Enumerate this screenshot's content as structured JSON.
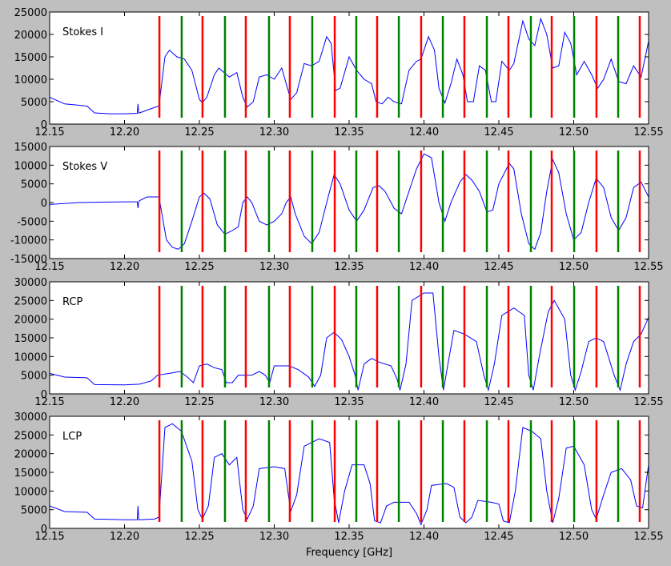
{
  "chart_data": [
    {
      "type": "line",
      "title": "Stokes I",
      "xlim": [
        12.15,
        12.55
      ],
      "xticks": [
        12.15,
        {
          "value": 12.2,
          "label": "12.20"
        },
        12.25,
        {
          "value": 12.3,
          "label": "12.30"
        },
        12.35,
        {
          "value": 12.4,
          "label": "12.40"
        },
        12.45,
        {
          "value": 12.5,
          "label": "12.50"
        },
        12.55
      ],
      "ylim": [
        0,
        25000
      ],
      "yticks": [
        0,
        5000,
        10000,
        15000,
        20000,
        25000
      ],
      "markers": [
        {
          "color": "#ff0000",
          "x": [
            12.2233,
            12.2521,
            12.281,
            12.3104,
            12.3404,
            12.3687,
            12.3981,
            12.427,
            12.4564,
            12.4853,
            12.5152,
            12.5441
          ]
        },
        {
          "color": "#008000",
          "x": [
            12.2382,
            12.2671,
            12.2965,
            12.3254,
            12.3548,
            12.3832,
            12.4126,
            12.442,
            12.4714,
            12.5003,
            12.5297
          ]
        }
      ],
      "series": [
        {
          "color": "#0000ff",
          "x": [
            12.15,
            12.16,
            12.17,
            12.175,
            12.18,
            12.19,
            12.2,
            12.2085,
            12.209,
            12.2095,
            12.21,
            12.22,
            12.223,
            12.227,
            12.23,
            12.235,
            12.24,
            12.245,
            12.25,
            12.252,
            12.255,
            12.26,
            12.263,
            12.27,
            12.275,
            12.279,
            12.282,
            12.286,
            12.29,
            12.295,
            12.3,
            12.305,
            12.308,
            12.311,
            12.315,
            12.32,
            12.325,
            12.33,
            12.335,
            12.338,
            12.341,
            12.344,
            12.35,
            12.355,
            12.36,
            12.365,
            12.368,
            12.372,
            12.376,
            12.38,
            12.385,
            12.39,
            12.395,
            12.398,
            12.403,
            12.407,
            12.41,
            12.414,
            12.418,
            12.422,
            12.426,
            12.429,
            12.433,
            12.437,
            12.441,
            12.445,
            12.448,
            12.452,
            12.457,
            12.46,
            12.466,
            12.47,
            12.474,
            12.478,
            12.482,
            12.486,
            12.49,
            12.494,
            12.498,
            12.502,
            12.507,
            12.512,
            12.516,
            12.52,
            12.525,
            12.53,
            12.535,
            12.54,
            12.545,
            12.55
          ],
          "values": [
            6000,
            4500,
            4200,
            4000,
            2500,
            2300,
            2300,
            2400,
            4500,
            2400,
            2500,
            3700,
            4000,
            15000,
            16500,
            15000,
            14500,
            12000,
            5500,
            4800,
            6000,
            11000,
            12500,
            10500,
            11500,
            6000,
            3800,
            5000,
            10500,
            11000,
            10000,
            12500,
            9000,
            5500,
            7000,
            13500,
            13000,
            14000,
            19500,
            18000,
            7500,
            8000,
            15000,
            12000,
            10000,
            9000,
            5000,
            4500,
            6000,
            5000,
            4500,
            12000,
            14000,
            14500,
            19500,
            16500,
            8000,
            4700,
            9000,
            14500,
            11000,
            5000,
            5000,
            13000,
            12000,
            5000,
            5000,
            14000,
            12000,
            13500,
            23000,
            19000,
            17500,
            23500,
            20000,
            12500,
            13000,
            20500,
            18000,
            11000,
            14000,
            11000,
            8000,
            10000,
            14500,
            9500,
            9000,
            13000,
            10500,
            18500
          ]
        }
      ]
    },
    {
      "type": "line",
      "title": "Stokes V",
      "xlim": [
        12.15,
        12.55
      ],
      "xticks": [
        12.15,
        {
          "value": 12.2,
          "label": "12.20"
        },
        12.25,
        {
          "value": 12.3,
          "label": "12.30"
        },
        12.35,
        {
          "value": 12.4,
          "label": "12.40"
        },
        12.45,
        {
          "value": 12.5,
          "label": "12.50"
        },
        12.55
      ],
      "ylim": [
        -15000,
        15000
      ],
      "yticks": [
        -15000,
        -10000,
        -5000,
        0,
        5000,
        10000,
        15000
      ],
      "markers": [
        {
          "color": "#ff0000",
          "x": [
            12.2233,
            12.2521,
            12.281,
            12.3104,
            12.3404,
            12.3687,
            12.3981,
            12.427,
            12.4564,
            12.4853,
            12.5152,
            12.5441
          ]
        },
        {
          "color": "#008000",
          "x": [
            12.2382,
            12.2671,
            12.2965,
            12.3254,
            12.3548,
            12.3832,
            12.4126,
            12.442,
            12.4714,
            12.5003,
            12.5297
          ]
        }
      ],
      "series": [
        {
          "color": "#0000ff",
          "x": [
            12.15,
            12.17,
            12.2,
            12.2085,
            12.209,
            12.2095,
            12.21,
            12.215,
            12.223,
            12.228,
            12.232,
            12.236,
            12.24,
            12.245,
            12.25,
            12.253,
            12.257,
            12.262,
            12.267,
            12.272,
            12.276,
            12.279,
            12.282,
            12.285,
            12.29,
            12.295,
            12.3,
            12.305,
            12.308,
            12.311,
            12.314,
            12.32,
            12.325,
            12.33,
            12.335,
            12.34,
            12.344,
            12.35,
            12.355,
            12.36,
            12.366,
            12.37,
            12.374,
            12.38,
            12.385,
            12.39,
            12.395,
            12.4,
            12.405,
            12.41,
            12.414,
            12.418,
            12.424,
            12.428,
            12.432,
            12.437,
            12.442,
            12.446,
            12.45,
            12.457,
            12.46,
            12.465,
            12.47,
            12.474,
            12.478,
            12.482,
            12.486,
            12.49,
            12.495,
            12.5,
            12.505,
            12.51,
            12.515,
            12.52,
            12.525,
            12.53,
            12.535,
            12.54,
            12.545,
            12.55
          ],
          "values": [
            -500,
            0,
            200,
            200,
            -1500,
            200,
            500,
            1500,
            1500,
            -10000,
            -12000,
            -12500,
            -11000,
            -5000,
            1500,
            2500,
            1000,
            -6000,
            -8500,
            -7500,
            -6500,
            0,
            1500,
            0,
            -5000,
            -6000,
            -5000,
            -3000,
            0,
            1500,
            -3000,
            -9000,
            -11000,
            -8000,
            0,
            7500,
            5000,
            -2000,
            -5000,
            -2000,
            4000,
            4500,
            3000,
            -1500,
            -3000,
            3000,
            9000,
            13000,
            12000,
            0,
            -5000,
            0,
            5500,
            7500,
            6000,
            3000,
            -2500,
            -2000,
            5000,
            10500,
            9000,
            -3000,
            -11000,
            -12500,
            -8000,
            3000,
            11500,
            8000,
            -3000,
            -10000,
            -8000,
            0,
            6500,
            4000,
            -4000,
            -7500,
            -4000,
            4000,
            5500,
            1500
          ]
        }
      ]
    },
    {
      "type": "line",
      "title": "RCP",
      "xlim": [
        12.15,
        12.55
      ],
      "xticks": [
        12.15,
        {
          "value": 12.2,
          "label": "12.20"
        },
        12.25,
        {
          "value": 12.3,
          "label": "12.30"
        },
        12.35,
        {
          "value": 12.4,
          "label": "12.40"
        },
        12.45,
        {
          "value": 12.5,
          "label": "12.50"
        },
        12.55
      ],
      "ylim": [
        0,
        30000
      ],
      "yticks": [
        0,
        5000,
        10000,
        15000,
        20000,
        25000,
        30000
      ],
      "markers": [
        {
          "color": "#ff0000",
          "x": [
            12.2233,
            12.2521,
            12.281,
            12.3104,
            12.3404,
            12.3687,
            12.3981,
            12.427,
            12.4564,
            12.4853,
            12.5152,
            12.5441
          ]
        },
        {
          "color": "#008000",
          "x": [
            12.2382,
            12.2671,
            12.2965,
            12.3254,
            12.3548,
            12.3832,
            12.4126,
            12.442,
            12.4714,
            12.5003,
            12.5297
          ]
        }
      ],
      "series": [
        {
          "color": "#0000ff",
          "x": [
            12.15,
            12.16,
            12.175,
            12.18,
            12.2,
            12.21,
            12.218,
            12.222,
            12.23,
            12.237,
            12.242,
            12.246,
            12.25,
            12.255,
            12.26,
            12.265,
            12.268,
            12.272,
            12.276,
            12.285,
            12.29,
            12.294,
            12.297,
            12.3,
            12.31,
            12.316,
            12.323,
            12.327,
            12.331,
            12.335,
            12.34,
            12.345,
            12.35,
            12.354,
            12.356,
            12.36,
            12.365,
            12.37,
            12.378,
            12.382,
            12.384,
            12.388,
            12.392,
            12.4,
            12.406,
            12.41,
            12.413,
            12.416,
            12.42,
            12.427,
            12.435,
            12.44,
            12.443,
            12.447,
            12.452,
            12.46,
            12.467,
            12.47,
            12.473,
            12.477,
            12.483,
            12.487,
            12.494,
            12.498,
            12.501,
            12.505,
            12.51,
            12.515,
            12.52,
            12.527,
            12.531,
            12.535,
            12.54,
            12.545,
            12.55
          ],
          "values": [
            5500,
            4500,
            4300,
            2500,
            2400,
            2600,
            3500,
            5000,
            5500,
            6000,
            4500,
            3000,
            7500,
            8000,
            7000,
            6500,
            3000,
            3000,
            5000,
            5000,
            6000,
            5000,
            3000,
            7500,
            7500,
            6500,
            4500,
            2000,
            5000,
            15000,
            16500,
            14500,
            10000,
            5000,
            1000,
            8000,
            9500,
            8500,
            7500,
            4000,
            1000,
            8000,
            25000,
            27000,
            27000,
            10000,
            1000,
            8000,
            17000,
            16000,
            14000,
            5000,
            1000,
            8000,
            21000,
            23000,
            21000,
            5000,
            1000,
            10000,
            22000,
            25000,
            20000,
            5000,
            1000,
            6000,
            14000,
            15000,
            14000,
            5000,
            1000,
            8000,
            14000,
            16000,
            20500
          ]
        }
      ]
    },
    {
      "type": "line",
      "title": "LCP",
      "x_label": "Frequency [GHz]",
      "xlim": [
        12.15,
        12.55
      ],
      "xticks": [
        12.15,
        {
          "value": 12.2,
          "label": "12.20"
        },
        12.25,
        {
          "value": 12.3,
          "label": "12.30"
        },
        12.35,
        {
          "value": 12.4,
          "label": "12.40"
        },
        12.45,
        {
          "value": 12.5,
          "label": "12.50"
        },
        12.55
      ],
      "ylim": [
        0,
        30000
      ],
      "yticks": [
        0,
        5000,
        10000,
        15000,
        20000,
        25000,
        30000
      ],
      "markers": [
        {
          "color": "#ff0000",
          "x": [
            12.2233,
            12.2521,
            12.281,
            12.3104,
            12.3404,
            12.3687,
            12.3981,
            12.427,
            12.4564,
            12.4853,
            12.5152,
            12.5441
          ]
        },
        {
          "color": "#008000",
          "x": [
            12.2382,
            12.2671,
            12.2965,
            12.3254,
            12.3548,
            12.3832,
            12.4126,
            12.442,
            12.4714,
            12.5003,
            12.5297
          ]
        }
      ],
      "series": [
        {
          "color": "#0000ff",
          "x": [
            12.15,
            12.16,
            12.175,
            12.18,
            12.2,
            12.2085,
            12.209,
            12.2095,
            12.21,
            12.22,
            12.223,
            12.227,
            12.232,
            12.238,
            12.245,
            12.249,
            12.252,
            12.256,
            12.26,
            12.265,
            12.27,
            12.275,
            12.279,
            12.282,
            12.286,
            12.29,
            12.3,
            12.307,
            12.311,
            12.315,
            12.32,
            12.33,
            12.337,
            12.34,
            12.343,
            12.347,
            12.352,
            12.36,
            12.364,
            12.367,
            12.371,
            12.375,
            12.38,
            12.39,
            12.395,
            12.398,
            12.402,
            12.405,
            12.415,
            12.42,
            12.424,
            12.428,
            12.432,
            12.436,
            12.445,
            12.45,
            12.453,
            12.457,
            12.461,
            12.466,
            12.472,
            12.478,
            12.482,
            12.486,
            12.49,
            12.495,
            12.5,
            12.507,
            12.512,
            12.515,
            12.52,
            12.525,
            12.532,
            12.538,
            12.542,
            12.546,
            12.55
          ],
          "values": [
            6000,
            4500,
            4300,
            2500,
            2300,
            2300,
            6000,
            2300,
            2300,
            2500,
            3000,
            27000,
            28000,
            26000,
            18000,
            5000,
            2500,
            6000,
            19000,
            20000,
            17000,
            19000,
            5000,
            2500,
            6000,
            16000,
            16500,
            16000,
            4500,
            9000,
            22000,
            24000,
            23000,
            8000,
            1500,
            10000,
            17000,
            17000,
            12000,
            2000,
            1500,
            6000,
            7000,
            7000,
            4000,
            1000,
            5000,
            11500,
            12000,
            11000,
            3000,
            1500,
            3000,
            7500,
            7000,
            6500,
            2000,
            1500,
            10000,
            27000,
            26000,
            24000,
            10000,
            1500,
            8000,
            21500,
            22000,
            17000,
            5000,
            2500,
            9000,
            15000,
            16000,
            13000,
            6000,
            5500,
            17000
          ]
        }
      ]
    }
  ]
}
